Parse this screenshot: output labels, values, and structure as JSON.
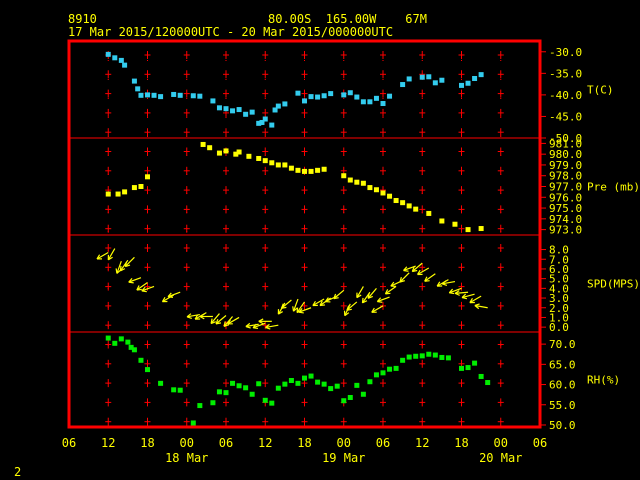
{
  "header": {
    "station": "8910",
    "location": "80.00S  165.00W    67M",
    "period": "17 Mar 2015/120000UTC - 20 Mar 2015/000000UTC"
  },
  "footer": {
    "page_number": "2"
  },
  "colors": {
    "frame": "#ff0000",
    "text": "#ffff00",
    "grid": "#ff0000"
  },
  "chart_data": {
    "type": "scatter",
    "x_axis": {
      "unit": "hours since 17 Mar 00UTC",
      "range": [
        6,
        78
      ],
      "ticks": [
        {
          "v": 6,
          "label": "06"
        },
        {
          "v": 12,
          "label": "12"
        },
        {
          "v": 18,
          "label": "18"
        },
        {
          "v": 24,
          "label": "00"
        },
        {
          "v": 30,
          "label": "06"
        },
        {
          "v": 36,
          "label": "12"
        },
        {
          "v": 42,
          "label": "18"
        },
        {
          "v": 48,
          "label": "00"
        },
        {
          "v": 54,
          "label": "06"
        },
        {
          "v": 60,
          "label": "12"
        },
        {
          "v": 66,
          "label": "18"
        },
        {
          "v": 72,
          "label": "00"
        },
        {
          "v": 78,
          "label": "06"
        }
      ],
      "date_labels": [
        {
          "v": 24,
          "label": "18 Mar"
        },
        {
          "v": 48,
          "label": "19 Mar"
        },
        {
          "v": 72,
          "label": "20 Mar"
        }
      ]
    },
    "panels": [
      {
        "name": "T(C)",
        "color": "#33ccee",
        "marker": "square",
        "range": [
          -50,
          -27.5
        ],
        "ticks": [
          -30,
          -35,
          -40,
          -45,
          -50
        ],
        "tick_labels": [
          "-30.0",
          "-35.0",
          "-40.0",
          "-45.0",
          "-50.0"
        ],
        "points": [
          [
            12,
            -30.6
          ],
          [
            13,
            -31.4
          ],
          [
            14,
            -32.0
          ],
          [
            14.5,
            -33.1
          ],
          [
            16,
            -36.8
          ],
          [
            16.5,
            -38.6
          ],
          [
            17,
            -40.1
          ],
          [
            18,
            -40.0
          ],
          [
            19,
            -40.1
          ],
          [
            20,
            -40.4
          ],
          [
            22,
            -39.9
          ],
          [
            23,
            -40.1
          ],
          [
            25,
            -40.2
          ],
          [
            26,
            -40.3
          ],
          [
            28,
            -41.4
          ],
          [
            29,
            -43.0
          ],
          [
            30,
            -43.2
          ],
          [
            31,
            -43.7
          ],
          [
            32,
            -43.4
          ],
          [
            33,
            -44.5
          ],
          [
            34,
            -44.0
          ],
          [
            35,
            -46.6
          ],
          [
            35.5,
            -46.4
          ],
          [
            36,
            -45.6
          ],
          [
            37,
            -47.0
          ],
          [
            37.5,
            -43.5
          ],
          [
            38,
            -42.6
          ],
          [
            39,
            -42.1
          ],
          [
            41,
            -39.6
          ],
          [
            42,
            -41.4
          ],
          [
            43,
            -40.4
          ],
          [
            44,
            -40.5
          ],
          [
            45,
            -40.2
          ],
          [
            46,
            -39.7
          ],
          [
            48,
            -40.0
          ],
          [
            49,
            -39.5
          ],
          [
            50,
            -40.5
          ],
          [
            51,
            -41.6
          ],
          [
            52,
            -41.6
          ],
          [
            53,
            -40.8
          ],
          [
            54,
            -42.0
          ],
          [
            55,
            -40.3
          ],
          [
            57,
            -37.6
          ],
          [
            58,
            -36.3
          ],
          [
            60,
            -35.9
          ],
          [
            61,
            -35.8
          ],
          [
            62,
            -37.2
          ],
          [
            63,
            -36.6
          ],
          [
            66,
            -37.8
          ],
          [
            67,
            -37.3
          ],
          [
            68,
            -36.2
          ],
          [
            69,
            -35.3
          ]
        ]
      },
      {
        "name": "Pre (mb)",
        "color": "#ffff00",
        "marker": "square",
        "range": [
          972.5,
          981.5
        ],
        "ticks": [
          981,
          980,
          979,
          978,
          977,
          976,
          975,
          974,
          973
        ],
        "tick_labels": [
          "981.0",
          "980.0",
          "979.0",
          "978.0",
          "977.0",
          "976.0",
          "975.0",
          "974.0",
          "973.0"
        ],
        "points": [
          [
            12,
            976.3
          ],
          [
            13.5,
            976.3
          ],
          [
            14.5,
            976.5
          ],
          [
            16,
            976.9
          ],
          [
            17,
            977.0
          ],
          [
            18,
            977.9
          ],
          [
            26.5,
            980.9
          ],
          [
            27.5,
            980.6
          ],
          [
            29,
            980.1
          ],
          [
            30,
            980.3
          ],
          [
            31.5,
            980.0
          ],
          [
            32,
            980.2
          ],
          [
            33.5,
            979.8
          ],
          [
            35,
            979.6
          ],
          [
            36,
            979.4
          ],
          [
            37,
            979.2
          ],
          [
            38,
            979.0
          ],
          [
            39,
            979.0
          ],
          [
            40,
            978.7
          ],
          [
            41,
            978.5
          ],
          [
            42,
            978.4
          ],
          [
            43,
            978.4
          ],
          [
            44,
            978.5
          ],
          [
            45,
            978.6
          ],
          [
            48,
            978.0
          ],
          [
            49,
            977.6
          ],
          [
            50,
            977.4
          ],
          [
            51,
            977.3
          ],
          [
            52,
            976.9
          ],
          [
            53,
            976.7
          ],
          [
            54,
            976.4
          ],
          [
            55,
            976.1
          ],
          [
            56,
            975.7
          ],
          [
            57,
            975.5
          ],
          [
            58,
            975.2
          ],
          [
            59,
            974.9
          ],
          [
            61,
            974.5
          ],
          [
            63,
            973.8
          ],
          [
            65,
            973.5
          ],
          [
            67,
            973.0
          ],
          [
            69,
            973.1
          ]
        ]
      },
      {
        "name": "SPD(MPS)",
        "color": "#ffff00",
        "marker": "wind-arrow",
        "range": [
          -0.5,
          9.5
        ],
        "ticks": [
          0,
          1,
          2,
          3,
          4,
          5,
          6,
          7,
          8
        ],
        "tick_labels": [
          "0.0",
          "1.0",
          "2.0",
          "3.0",
          "4.0",
          "5.0",
          "6.0",
          "7.0",
          "8.0"
        ],
        "points": [
          [
            12,
            7.7,
            240
          ],
          [
            13,
            8.1,
            210
          ],
          [
            14,
            6.8,
            200
          ],
          [
            15,
            6.9,
            215
          ],
          [
            16,
            7.2,
            225
          ],
          [
            17,
            5.1,
            250
          ],
          [
            18,
            4.6,
            235
          ],
          [
            19,
            4.2,
            250
          ],
          [
            22,
            3.3,
            240
          ],
          [
            23,
            3.6,
            250
          ],
          [
            26,
            1.3,
            260
          ],
          [
            27,
            1.5,
            240
          ],
          [
            28,
            1.1,
            270
          ],
          [
            29,
            1.4,
            220
          ],
          [
            30,
            1.2,
            230
          ],
          [
            31,
            1.1,
            220
          ],
          [
            32,
            1.0,
            240
          ],
          [
            35,
            0.3,
            260
          ],
          [
            36,
            0.4,
            250
          ],
          [
            37,
            0.6,
            270
          ],
          [
            38,
            0.2,
            260
          ],
          [
            39,
            2.5,
            210
          ],
          [
            40,
            2.8,
            230
          ],
          [
            41,
            2.9,
            200
          ],
          [
            42,
            2.6,
            215
          ],
          [
            43,
            2.0,
            250
          ],
          [
            45,
            2.9,
            240
          ],
          [
            46,
            3.0,
            235
          ],
          [
            47,
            3.2,
            245
          ],
          [
            48,
            3.8,
            230
          ],
          [
            49,
            2.4,
            205
          ],
          [
            50,
            2.6,
            230
          ],
          [
            51,
            4.2,
            210
          ],
          [
            52,
            3.6,
            215
          ],
          [
            53,
            4.0,
            220
          ],
          [
            54,
            2.2,
            240
          ],
          [
            55,
            3.1,
            250
          ],
          [
            56,
            4.2,
            235
          ],
          [
            57,
            4.8,
            245
          ],
          [
            58,
            5.6,
            225
          ],
          [
            59,
            6.3,
            250
          ],
          [
            60,
            6.6,
            230
          ],
          [
            61,
            6.1,
            240
          ],
          [
            62,
            5.5,
            235
          ],
          [
            64,
            4.9,
            240
          ],
          [
            65,
            4.7,
            260
          ],
          [
            66,
            4.0,
            250
          ],
          [
            67,
            3.6,
            265
          ],
          [
            68,
            3.4,
            255
          ],
          [
            69,
            3.2,
            240
          ],
          [
            70,
            2.0,
            280
          ]
        ]
      },
      {
        "name": "RH(%)",
        "color": "#00ee00",
        "marker": "square",
        "range": [
          49.5,
          73
        ],
        "ticks": [
          70,
          65,
          60,
          55,
          50
        ],
        "tick_labels": [
          "70.0",
          "65.0",
          "60.0",
          "55.0",
          "50.0"
        ],
        "points": [
          [
            12,
            71.5
          ],
          [
            13,
            70.2
          ],
          [
            14,
            71.3
          ],
          [
            15,
            70.5
          ],
          [
            15.5,
            69.2
          ],
          [
            16,
            68.6
          ],
          [
            17,
            66.0
          ],
          [
            18,
            63.7
          ],
          [
            20,
            60.3
          ],
          [
            22,
            58.7
          ],
          [
            23,
            58.6
          ],
          [
            25,
            50.5
          ],
          [
            26,
            54.8
          ],
          [
            28,
            55.5
          ],
          [
            29,
            58.2
          ],
          [
            30,
            58.0
          ],
          [
            31,
            60.3
          ],
          [
            32,
            59.7
          ],
          [
            33,
            59.2
          ],
          [
            34,
            57.6
          ],
          [
            35,
            60.2
          ],
          [
            36,
            56.1
          ],
          [
            37,
            55.4
          ],
          [
            38,
            59.1
          ],
          [
            39,
            60.1
          ],
          [
            40,
            61.0
          ],
          [
            41,
            60.3
          ],
          [
            42,
            61.6
          ],
          [
            43,
            62.1
          ],
          [
            44,
            60.6
          ],
          [
            45,
            60.1
          ],
          [
            46,
            59.0
          ],
          [
            47,
            59.6
          ],
          [
            48,
            56.0
          ],
          [
            49,
            56.8
          ],
          [
            50,
            59.8
          ],
          [
            51,
            57.6
          ],
          [
            52,
            60.7
          ],
          [
            53,
            62.4
          ],
          [
            54,
            62.9
          ],
          [
            55,
            63.8
          ],
          [
            56,
            64.0
          ],
          [
            57,
            66.0
          ],
          [
            58,
            66.8
          ],
          [
            59,
            67.0
          ],
          [
            60,
            67.1
          ],
          [
            61,
            67.5
          ],
          [
            62,
            67.3
          ],
          [
            63,
            66.7
          ],
          [
            64,
            66.6
          ],
          [
            66,
            64.0
          ],
          [
            67,
            64.2
          ],
          [
            68,
            65.3
          ],
          [
            69,
            62.0
          ],
          [
            70,
            60.5
          ]
        ]
      }
    ]
  }
}
